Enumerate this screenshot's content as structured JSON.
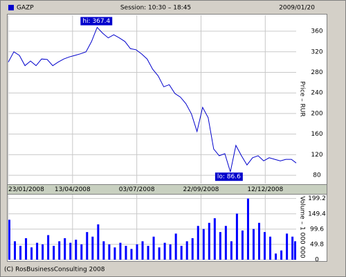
{
  "chart_data": [
    {
      "type": "line",
      "subtitle": "Session: 10:30 – 18:45",
      "date": "2009/01/20",
      "y_label": "Price – RUR",
      "x": [
        "2008-01-23",
        "2008-01-30",
        "2008-02-06",
        "2008-02-13",
        "2008-02-20",
        "2008-02-27",
        "2008-03-05",
        "2008-03-12",
        "2008-03-19",
        "2008-03-26",
        "2008-04-02",
        "2008-04-09",
        "2008-04-16",
        "2008-04-23",
        "2008-04-30",
        "2008-05-07",
        "2008-05-14",
        "2008-05-21",
        "2008-05-28",
        "2008-06-04",
        "2008-06-11",
        "2008-06-18",
        "2008-06-25",
        "2008-07-02",
        "2008-07-09",
        "2008-07-16",
        "2008-07-23",
        "2008-07-30",
        "2008-08-06",
        "2008-08-13",
        "2008-08-20",
        "2008-08-27",
        "2008-09-03",
        "2008-09-10",
        "2008-09-17",
        "2008-09-24",
        "2008-10-01",
        "2008-10-08",
        "2008-10-15",
        "2008-10-22",
        "2008-10-29",
        "2008-11-05",
        "2008-11-12",
        "2008-11-19",
        "2008-11-26",
        "2008-12-03",
        "2008-12-10",
        "2008-12-17",
        "2008-12-24",
        "2008-12-31",
        "2009-01-07",
        "2009-01-14",
        "2009-01-20"
      ],
      "series": [
        {
          "name": "GAZP",
          "color": "#0000cc",
          "values": [
            300,
            320,
            313,
            293,
            302,
            293,
            306,
            305,
            293,
            300,
            306,
            310,
            313,
            316,
            320,
            340,
            367.4,
            356,
            347,
            353,
            347,
            340,
            326,
            324,
            316,
            306,
            286,
            273,
            252,
            256,
            239,
            232,
            219,
            199,
            165,
            212,
            192,
            131,
            118,
            122,
            86.6,
            138,
            118,
            100,
            114,
            118,
            108,
            114,
            111,
            108,
            111,
            111,
            104
          ]
        }
      ],
      "xlim": [
        "2008-01-23",
        "2009-01-20"
      ],
      "xticks": [
        {
          "value": "2008-01-23",
          "label": "23/01/2008"
        },
        {
          "value": "2008-04-13",
          "label": "13/04/2008"
        },
        {
          "value": "2008-07-03",
          "label": "03/07/2008"
        },
        {
          "value": "2008-09-22",
          "label": "22/09/2008"
        },
        {
          "value": "2008-12-12",
          "label": "12/12/2008"
        }
      ],
      "ylim": [
        64,
        391
      ],
      "yticks": [
        80,
        120,
        160,
        200,
        240,
        280,
        320,
        360
      ],
      "grid": true,
      "annotations": [
        {
          "text": "hi: 367.4",
          "x": "2008-05-14",
          "y": 367.4
        },
        {
          "text": "lo: 86.6",
          "x": "2008-10-29",
          "y": 86.6
        }
      ]
    },
    {
      "type": "bar",
      "y_label": "Volume – 1 000 000",
      "color": "#0000ff",
      "x": [
        "2008-01-23",
        "2008-01-30",
        "2008-02-06",
        "2008-02-13",
        "2008-02-20",
        "2008-02-27",
        "2008-03-05",
        "2008-03-12",
        "2008-03-19",
        "2008-03-26",
        "2008-04-02",
        "2008-04-09",
        "2008-04-16",
        "2008-04-23",
        "2008-04-30",
        "2008-05-07",
        "2008-05-14",
        "2008-05-21",
        "2008-05-28",
        "2008-06-04",
        "2008-06-11",
        "2008-06-18",
        "2008-06-25",
        "2008-07-02",
        "2008-07-09",
        "2008-07-16",
        "2008-07-23",
        "2008-07-30",
        "2008-08-06",
        "2008-08-13",
        "2008-08-20",
        "2008-08-27",
        "2008-09-03",
        "2008-09-10",
        "2008-09-17",
        "2008-09-24",
        "2008-10-01",
        "2008-10-08",
        "2008-10-15",
        "2008-10-22",
        "2008-10-29",
        "2008-11-05",
        "2008-11-12",
        "2008-11-19",
        "2008-11-26",
        "2008-12-03",
        "2008-12-10",
        "2008-12-17",
        "2008-12-24",
        "2008-12-31",
        "2009-01-07",
        "2009-01-14",
        "2009-01-20"
      ],
      "values": [
        130,
        60,
        45,
        70,
        40,
        55,
        50,
        80,
        45,
        60,
        70,
        55,
        65,
        50,
        90,
        75,
        115,
        60,
        50,
        40,
        55,
        45,
        35,
        50,
        60,
        45,
        75,
        40,
        55,
        50,
        85,
        45,
        60,
        70,
        110,
        100,
        120,
        135,
        90,
        110,
        60,
        150,
        95,
        199,
        100,
        120,
        90,
        75,
        20,
        30,
        85,
        75,
        60
      ],
      "xlim": [
        "2008-01-23",
        "2009-01-20"
      ],
      "ylim": [
        0,
        212
      ],
      "yticks": [
        0,
        49.8,
        99.6,
        149.4,
        199.2
      ],
      "grid": true
    }
  ],
  "footer": "(C) RosBusinessConsulting 2008"
}
